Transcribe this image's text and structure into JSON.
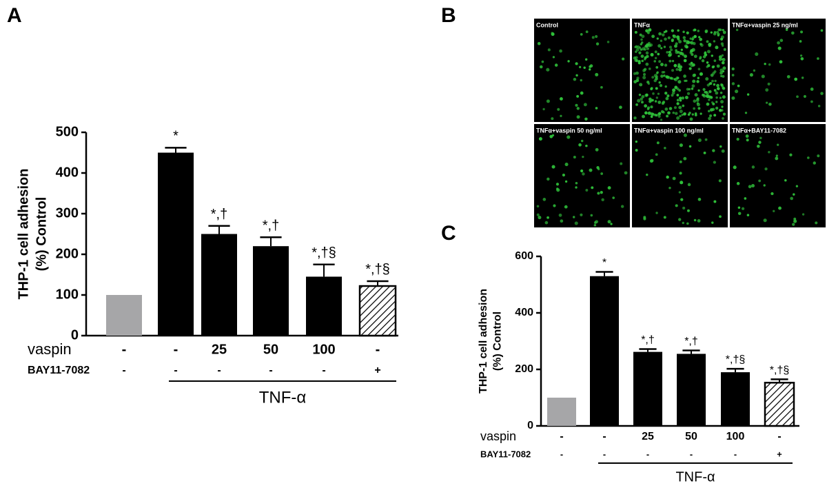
{
  "panels": [
    "A",
    "B",
    "C"
  ],
  "images": [
    "Control",
    "TNFα",
    "TNFα+vaspin 25 ng/ml",
    "TNFα+vaspin 50 ng/ml",
    "TNFα+vaspin 100 ng/ml",
    "TNFα+BAY11-7082"
  ],
  "chart_data": [
    {
      "type": "bar",
      "ylabel": [
        "THP-1 cell adhesion",
        "(%) Control"
      ],
      "categories": [
        "-",
        "-",
        "25",
        "50",
        "100",
        "-"
      ],
      "category_row_name": "vaspin",
      "rows": [
        {
          "name": "BAY11-7082",
          "labels": [
            "-",
            "-",
            "-",
            "-",
            "-",
            "+"
          ]
        }
      ],
      "group_label": "TNF-α",
      "values": [
        100,
        450,
        250,
        220,
        145,
        122
      ],
      "errors": [
        0,
        12,
        20,
        22,
        30,
        12
      ],
      "annotations": [
        null,
        "*",
        "*,†",
        "*,†",
        "*,†§",
        "*,†§"
      ],
      "colors": [
        "#a6a6a8",
        "#000000",
        "#000000",
        "#000000",
        "#000000",
        "hatch"
      ],
      "ylim": [
        0,
        500
      ],
      "yticks": [
        0,
        100,
        200,
        300,
        400,
        500
      ]
    },
    {
      "type": "bar",
      "ylabel": [
        "THP-1 cell adhesion",
        "(%) Control"
      ],
      "categories": [
        "-",
        "-",
        "25",
        "50",
        "100",
        "-"
      ],
      "category_row_name": "vaspin",
      "rows": [
        {
          "name": "BAY11-7082",
          "labels": [
            "-",
            "-",
            "-",
            "-",
            "-",
            "+"
          ]
        }
      ],
      "group_label": "TNF-α",
      "values": [
        100,
        530,
        262,
        255,
        190,
        153
      ],
      "errors": [
        0,
        15,
        10,
        12,
        12,
        12
      ],
      "annotations": [
        null,
        "*",
        "*,†",
        "*,†",
        "*,†§",
        "*,†§"
      ],
      "colors": [
        "#a6a6a8",
        "#000000",
        "#000000",
        "#000000",
        "#000000",
        "hatch"
      ],
      "ylim": [
        0,
        600
      ],
      "yticks": [
        0,
        200,
        400,
        600
      ]
    }
  ]
}
